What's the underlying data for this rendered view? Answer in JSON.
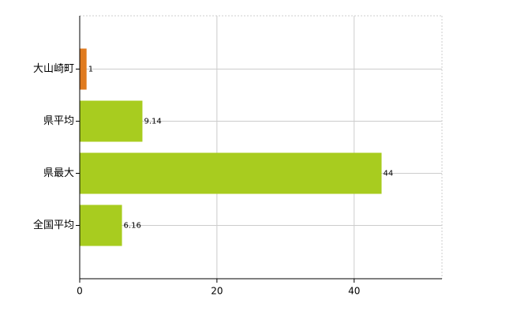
{
  "chart_data": {
    "type": "bar",
    "orientation": "horizontal",
    "categories": [
      "大山崎町",
      "県平均",
      "県最大",
      "全国平均"
    ],
    "values": [
      1,
      9.14,
      44,
      6.16
    ],
    "colors": [
      "#e07b1f",
      "#a8cc1f",
      "#a8cc1f",
      "#a8cc1f"
    ],
    "xlim": [
      0,
      52.8
    ],
    "xticks": [
      0,
      20,
      40
    ],
    "grid": true
  }
}
